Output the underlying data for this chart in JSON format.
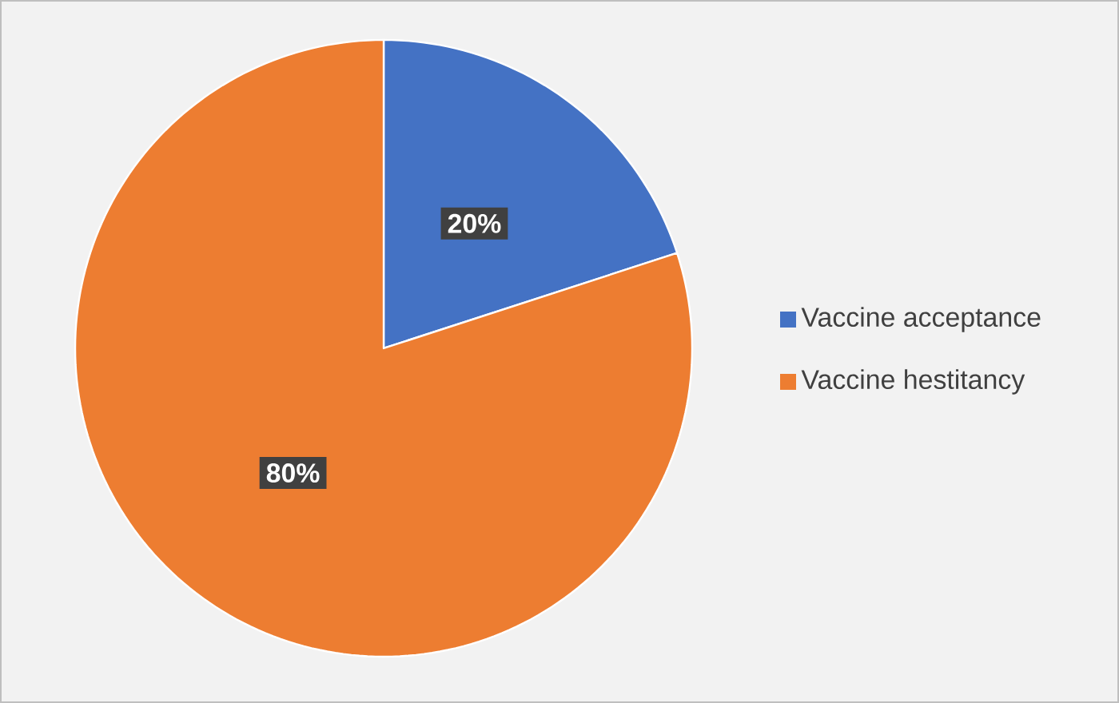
{
  "chart_data": {
    "type": "pie",
    "categories": [
      "Vaccine acceptance",
      "Vaccine hestitancy"
    ],
    "values": [
      20,
      80
    ],
    "colors": [
      "#4472c4",
      "#ed7d31"
    ],
    "value_labels": [
      "20%",
      "80%"
    ],
    "legend": "right"
  }
}
